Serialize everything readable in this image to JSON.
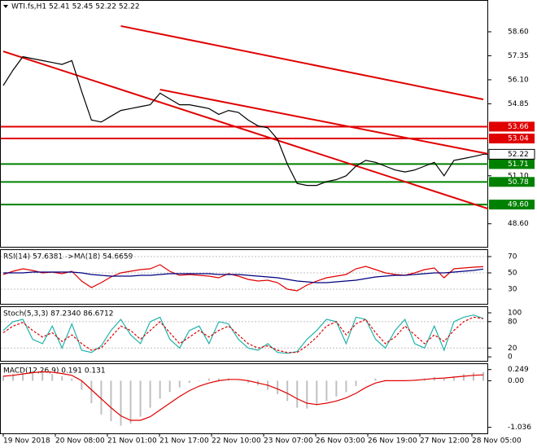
{
  "chart_data": [
    {
      "type": "line",
      "title": "WTI.fs,H1  52.41 52.45 52.22 52.22",
      "ylim": [
        47.4,
        60.0
      ],
      "yticks": [
        {
          "value": 58.6,
          "label": "58.60"
        },
        {
          "value": 57.35,
          "label": "57.35"
        },
        {
          "value": 56.1,
          "label": "56.10"
        },
        {
          "value": 54.85,
          "label": "54.85"
        },
        {
          "value": 51.1,
          "label": "51.10"
        },
        {
          "value": 48.6,
          "label": "48.60"
        }
      ],
      "series": [
        {
          "type": "line",
          "color": "#000000",
          "values": [
            55.8,
            56.6,
            57.3,
            57.2,
            57.1,
            57.0,
            56.9,
            57.1,
            55.5,
            54.0,
            53.9,
            54.2,
            54.5,
            54.6,
            54.7,
            54.8,
            55.4,
            55.1,
            54.8,
            54.8,
            54.7,
            54.6,
            54.3,
            54.5,
            54.4,
            54.0,
            53.7,
            53.6,
            53.0,
            51.7,
            50.7,
            50.6,
            50.6,
            50.8,
            50.9,
            51.1,
            51.6,
            51.9,
            51.8,
            51.6,
            51.4,
            51.3,
            51.4,
            51.6,
            51.8,
            51.1,
            51.9,
            52.0,
            52.1,
            52.22
          ]
        }
      ],
      "levels": [
        {
          "value": 53.66,
          "label": "53.66",
          "color": "#e00000"
        },
        {
          "value": 53.04,
          "label": "53.04",
          "color": "#e00000"
        },
        {
          "value": 51.71,
          "label": "51.71",
          "color": "#008000"
        },
        {
          "value": 50.78,
          "label": "50.78",
          "color": "#008000"
        },
        {
          "value": 49.6,
          "label": "49.60",
          "color": "#008000"
        }
      ],
      "last_price": {
        "value": 52.22,
        "label": "52.22"
      },
      "trend_lines": [
        {
          "color": "#e00000",
          "start": [
            0,
            57.58
          ],
          "end": [
            50,
            49.3
          ]
        },
        {
          "color": "#e00000",
          "start": [
            12,
            58.9
          ],
          "end": [
            49,
            55.08
          ]
        },
        {
          "color": "#e00000",
          "start": [
            16,
            55.59
          ],
          "end": [
            50,
            52.19
          ]
        }
      ],
      "x_labels": [
        "19 Nov 2018",
        "20 Nov 08:00",
        "21 Nov 01:00",
        "21 Nov 17:00",
        "22 Nov 10:00",
        "23 Nov 07:00",
        "26 Nov 03:00",
        "26 Nov 19:00",
        "27 Nov 12:00",
        "28 Nov 05:00"
      ]
    },
    {
      "type": "line",
      "title": "RSI(14) 57.6381 ->MA(18) 54.6659",
      "ylim": [
        12,
        78
      ],
      "yticks": [
        70,
        50,
        30
      ],
      "series": [
        {
          "type": "line",
          "color": "#e00000",
          "values": [
            48,
            52,
            55,
            53,
            50,
            51,
            49,
            52,
            40,
            32,
            38,
            45,
            50,
            52,
            54,
            55,
            60,
            52,
            47,
            48,
            47,
            46,
            44,
            49,
            46,
            42,
            40,
            41,
            38,
            30,
            28,
            35,
            40,
            44,
            46,
            48,
            55,
            58,
            54,
            50,
            48,
            47,
            50,
            54,
            56,
            44,
            55,
            56,
            57,
            57.64
          ]
        },
        {
          "type": "line",
          "color": "#000080",
          "values": [
            50,
            50,
            50,
            51,
            51,
            51,
            51,
            51,
            50,
            48,
            47,
            46,
            46,
            46,
            47,
            47,
            48,
            49,
            49,
            49,
            49,
            49,
            48,
            48,
            48,
            47,
            46,
            45,
            44,
            42,
            40,
            39,
            38,
            38,
            39,
            40,
            41,
            43,
            45,
            46,
            47,
            47,
            48,
            49,
            50,
            50,
            51,
            52,
            53,
            54.67
          ]
        }
      ]
    },
    {
      "type": "line",
      "title": "Stoch(5,3,3) 87.2340 86.6712",
      "ylim": [
        -9,
        113
      ],
      "yticks": [
        100,
        80,
        20,
        0
      ],
      "series": [
        {
          "type": "line",
          "color": "#20b2aa",
          "values": [
            60,
            80,
            85,
            40,
            30,
            70,
            20,
            75,
            15,
            10,
            25,
            60,
            85,
            50,
            30,
            80,
            90,
            40,
            20,
            60,
            70,
            30,
            80,
            75,
            40,
            20,
            15,
            30,
            10,
            8,
            12,
            40,
            60,
            85,
            80,
            30,
            90,
            85,
            40,
            20,
            60,
            85,
            30,
            20,
            70,
            15,
            80,
            90,
            95,
            87.23
          ]
        },
        {
          "type": "dash",
          "color": "#e00000",
          "values": [
            55,
            70,
            78,
            60,
            45,
            55,
            35,
            50,
            30,
            15,
            20,
            45,
            70,
            60,
            40,
            60,
            80,
            55,
            30,
            45,
            60,
            45,
            60,
            70,
            50,
            30,
            20,
            25,
            15,
            10,
            10,
            25,
            45,
            70,
            80,
            50,
            75,
            85,
            55,
            30,
            45,
            70,
            50,
            30,
            50,
            35,
            60,
            80,
            90,
            86.67
          ]
        }
      ]
    },
    {
      "type": "bar",
      "title": "MACD(12,26,9) 0.191 0.131",
      "ylim": [
        -1.17,
        0.37
      ],
      "yticks": [
        0.249,
        {
          "value": 0,
          "label": "0.00"
        },
        -1.036
      ],
      "series": [
        {
          "type": "bar",
          "color": "#c0c0c0",
          "values": [
            0.1,
            0.15,
            0.2,
            0.22,
            0.2,
            0.15,
            0.1,
            0.05,
            -0.2,
            -0.5,
            -0.75,
            -0.9,
            -1.0,
            -0.95,
            -0.8,
            -0.6,
            -0.4,
            -0.25,
            -0.15,
            -0.05,
            0.0,
            0.05,
            0.05,
            0.05,
            0.0,
            -0.05,
            -0.1,
            -0.2,
            -0.3,
            -0.45,
            -0.6,
            -0.62,
            -0.55,
            -0.45,
            -0.35,
            -0.25,
            -0.12,
            0.0,
            0.05,
            0.02,
            0.0,
            0.0,
            0.02,
            0.05,
            0.08,
            0.05,
            0.1,
            0.15,
            0.18,
            0.191
          ]
        },
        {
          "type": "line",
          "color": "#e00000",
          "values": [
            0.1,
            0.12,
            0.15,
            0.18,
            0.2,
            0.19,
            0.16,
            0.12,
            0.0,
            -0.2,
            -0.4,
            -0.6,
            -0.78,
            -0.88,
            -0.88,
            -0.8,
            -0.65,
            -0.5,
            -0.35,
            -0.22,
            -0.12,
            -0.05,
            0.0,
            0.03,
            0.03,
            0.0,
            -0.05,
            -0.1,
            -0.18,
            -0.28,
            -0.4,
            -0.5,
            -0.53,
            -0.5,
            -0.45,
            -0.38,
            -0.28,
            -0.15,
            -0.05,
            0.0,
            0.0,
            0.0,
            0.01,
            0.03,
            0.05,
            0.06,
            0.08,
            0.1,
            0.12,
            0.131
          ]
        }
      ]
    }
  ]
}
